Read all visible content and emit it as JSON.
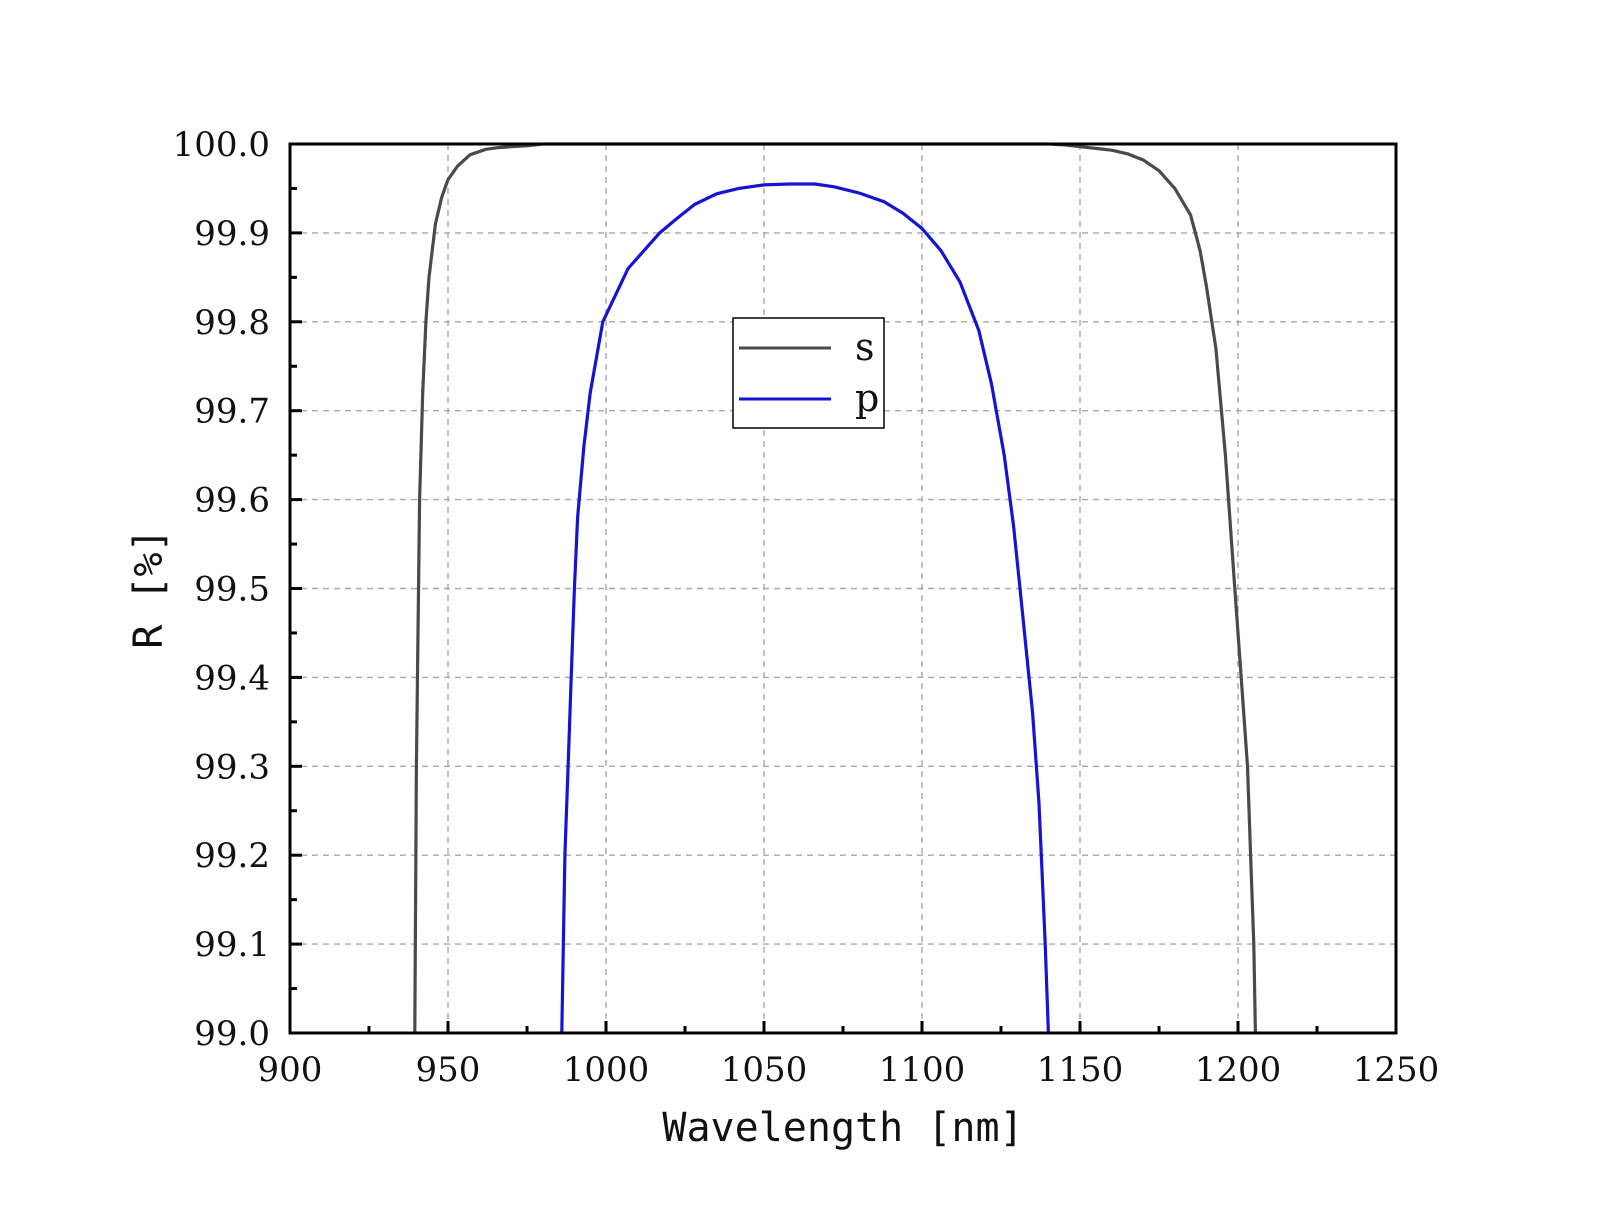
{
  "chart_data": {
    "type": "line",
    "title": "",
    "xlabel": "Wavelength [nm]",
    "ylabel": "R [%]",
    "xlim": [
      900,
      1250
    ],
    "ylim": [
      99.0,
      100.0
    ],
    "x_ticks": [
      "900",
      "950",
      "1000",
      "1050",
      "1100",
      "1150",
      "1200",
      "1250"
    ],
    "y_ticks": [
      "99.0",
      "99.1",
      "99.2",
      "99.3",
      "99.4",
      "99.5",
      "99.6",
      "99.7",
      "99.8",
      "99.9",
      "100.0"
    ],
    "grid": true,
    "legend_position": "center",
    "series": [
      {
        "name": "s",
        "color": "#4a4a4a",
        "x": [
          939.5,
          940,
          941,
          942,
          943,
          944,
          946,
          948,
          950,
          953,
          957,
          962,
          966,
          970,
          975,
          980,
          1000,
          1050,
          1100,
          1140,
          1145,
          1150,
          1155,
          1160,
          1165,
          1170,
          1175,
          1180,
          1185,
          1188,
          1190,
          1193,
          1196,
          1199,
          1201,
          1203,
          1204,
          1205,
          1205.5
        ],
        "y": [
          99.0,
          99.3,
          99.6,
          99.72,
          99.8,
          99.85,
          99.91,
          99.94,
          99.96,
          99.975,
          99.988,
          99.994,
          99.996,
          99.997,
          99.998,
          100.0,
          100.0,
          100.0,
          100.0,
          100.0,
          99.999,
          99.997,
          99.995,
          99.993,
          99.989,
          99.982,
          99.97,
          99.95,
          99.92,
          99.88,
          99.84,
          99.77,
          99.65,
          99.5,
          99.4,
          99.3,
          99.2,
          99.1,
          99.0
        ]
      },
      {
        "name": "p",
        "color": "#1414d2",
        "x": [
          986,
          987,
          988,
          989,
          990,
          991,
          993,
          995,
          997,
          999,
          1003,
          1007,
          1012,
          1017,
          1022,
          1028,
          1035,
          1042,
          1050,
          1058,
          1066,
          1072,
          1080,
          1088,
          1094,
          1100,
          1106,
          1112,
          1118,
          1122,
          1126,
          1129,
          1131,
          1133,
          1135,
          1137,
          1138,
          1139,
          1140
        ],
        "y": [
          99.0,
          99.2,
          99.3,
          99.4,
          99.5,
          99.58,
          99.66,
          99.72,
          99.76,
          99.8,
          99.83,
          99.86,
          99.88,
          99.9,
          99.915,
          99.932,
          99.944,
          99.95,
          99.954,
          99.955,
          99.955,
          99.952,
          99.945,
          99.935,
          99.922,
          99.905,
          99.88,
          99.845,
          99.79,
          99.73,
          99.65,
          99.57,
          99.5,
          99.43,
          99.36,
          99.26,
          99.18,
          99.1,
          99.0
        ]
      }
    ]
  }
}
